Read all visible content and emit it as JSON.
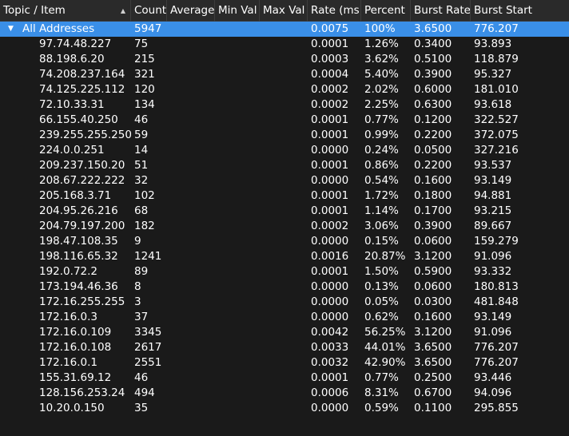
{
  "columns": [
    "Topic / Item",
    "Count",
    "Average",
    "Min Val",
    "Max Val",
    "Rate (ms)",
    "Percent",
    "Burst Rate",
    "Burst Start"
  ],
  "icons": {
    "sort": "sort-ascending-icon",
    "expand": "expand-triangle-icon"
  },
  "colors": {
    "background": "#1a1a1a",
    "header": "#2a2a2a",
    "selection": "#3a8fe8",
    "text": "#ffffff"
  },
  "parent": {
    "topic": "All Addresses",
    "count": "5947",
    "average": "",
    "min": "",
    "max": "",
    "rate": "0.0075",
    "percent": "100%",
    "burst_rate": "3.6500",
    "burst_start": "776.207"
  },
  "rows": [
    {
      "topic": "97.74.48.227",
      "count": "75",
      "rate": "0.0001",
      "percent": "1.26%",
      "burst_rate": "0.3400",
      "burst_start": "93.893"
    },
    {
      "topic": "88.198.6.20",
      "count": "215",
      "rate": "0.0003",
      "percent": "3.62%",
      "burst_rate": "0.5100",
      "burst_start": "118.879"
    },
    {
      "topic": "74.208.237.164",
      "count": "321",
      "rate": "0.0004",
      "percent": "5.40%",
      "burst_rate": "0.3900",
      "burst_start": "95.327"
    },
    {
      "topic": "74.125.225.112",
      "count": "120",
      "rate": "0.0002",
      "percent": "2.02%",
      "burst_rate": "0.6000",
      "burst_start": "181.010"
    },
    {
      "topic": "72.10.33.31",
      "count": "134",
      "rate": "0.0002",
      "percent": "2.25%",
      "burst_rate": "0.6300",
      "burst_start": "93.618"
    },
    {
      "topic": "66.155.40.250",
      "count": "46",
      "rate": "0.0001",
      "percent": "0.77%",
      "burst_rate": "0.1200",
      "burst_start": "322.527"
    },
    {
      "topic": "239.255.255.250",
      "count": "59",
      "rate": "0.0001",
      "percent": "0.99%",
      "burst_rate": "0.2200",
      "burst_start": "372.075"
    },
    {
      "topic": "224.0.0.251",
      "count": "14",
      "rate": "0.0000",
      "percent": "0.24%",
      "burst_rate": "0.0500",
      "burst_start": "327.216"
    },
    {
      "topic": "209.237.150.20",
      "count": "51",
      "rate": "0.0001",
      "percent": "0.86%",
      "burst_rate": "0.2200",
      "burst_start": "93.537"
    },
    {
      "topic": "208.67.222.222",
      "count": "32",
      "rate": "0.0000",
      "percent": "0.54%",
      "burst_rate": "0.1600",
      "burst_start": "93.149"
    },
    {
      "topic": "205.168.3.71",
      "count": "102",
      "rate": "0.0001",
      "percent": "1.72%",
      "burst_rate": "0.1800",
      "burst_start": "94.881"
    },
    {
      "topic": "204.95.26.216",
      "count": "68",
      "rate": "0.0001",
      "percent": "1.14%",
      "burst_rate": "0.1700",
      "burst_start": "93.215"
    },
    {
      "topic": "204.79.197.200",
      "count": "182",
      "rate": "0.0002",
      "percent": "3.06%",
      "burst_rate": "0.3900",
      "burst_start": "89.667"
    },
    {
      "topic": "198.47.108.35",
      "count": "9",
      "rate": "0.0000",
      "percent": "0.15%",
      "burst_rate": "0.0600",
      "burst_start": "159.279"
    },
    {
      "topic": "198.116.65.32",
      "count": "1241",
      "rate": "0.0016",
      "percent": "20.87%",
      "burst_rate": "3.1200",
      "burst_start": "91.096"
    },
    {
      "topic": "192.0.72.2",
      "count": "89",
      "rate": "0.0001",
      "percent": "1.50%",
      "burst_rate": "0.5900",
      "burst_start": "93.332"
    },
    {
      "topic": "173.194.46.36",
      "count": "8",
      "rate": "0.0000",
      "percent": "0.13%",
      "burst_rate": "0.0600",
      "burst_start": "180.813"
    },
    {
      "topic": "172.16.255.255",
      "count": "3",
      "rate": "0.0000",
      "percent": "0.05%",
      "burst_rate": "0.0300",
      "burst_start": "481.848"
    },
    {
      "topic": "172.16.0.3",
      "count": "37",
      "rate": "0.0000",
      "percent": "0.62%",
      "burst_rate": "0.1600",
      "burst_start": "93.149"
    },
    {
      "topic": "172.16.0.109",
      "count": "3345",
      "rate": "0.0042",
      "percent": "56.25%",
      "burst_rate": "3.1200",
      "burst_start": "91.096"
    },
    {
      "topic": "172.16.0.108",
      "count": "2617",
      "rate": "0.0033",
      "percent": "44.01%",
      "burst_rate": "3.6500",
      "burst_start": "776.207"
    },
    {
      "topic": "172.16.0.1",
      "count": "2551",
      "rate": "0.0032",
      "percent": "42.90%",
      "burst_rate": "3.6500",
      "burst_start": "776.207"
    },
    {
      "topic": "155.31.69.12",
      "count": "46",
      "rate": "0.0001",
      "percent": "0.77%",
      "burst_rate": "0.2500",
      "burst_start": "93.446"
    },
    {
      "topic": "128.156.253.24",
      "count": "494",
      "rate": "0.0006",
      "percent": "8.31%",
      "burst_rate": "0.6700",
      "burst_start": "94.096"
    },
    {
      "topic": "10.20.0.150",
      "count": "35",
      "rate": "0.0000",
      "percent": "0.59%",
      "burst_rate": "0.1100",
      "burst_start": "295.855"
    }
  ]
}
